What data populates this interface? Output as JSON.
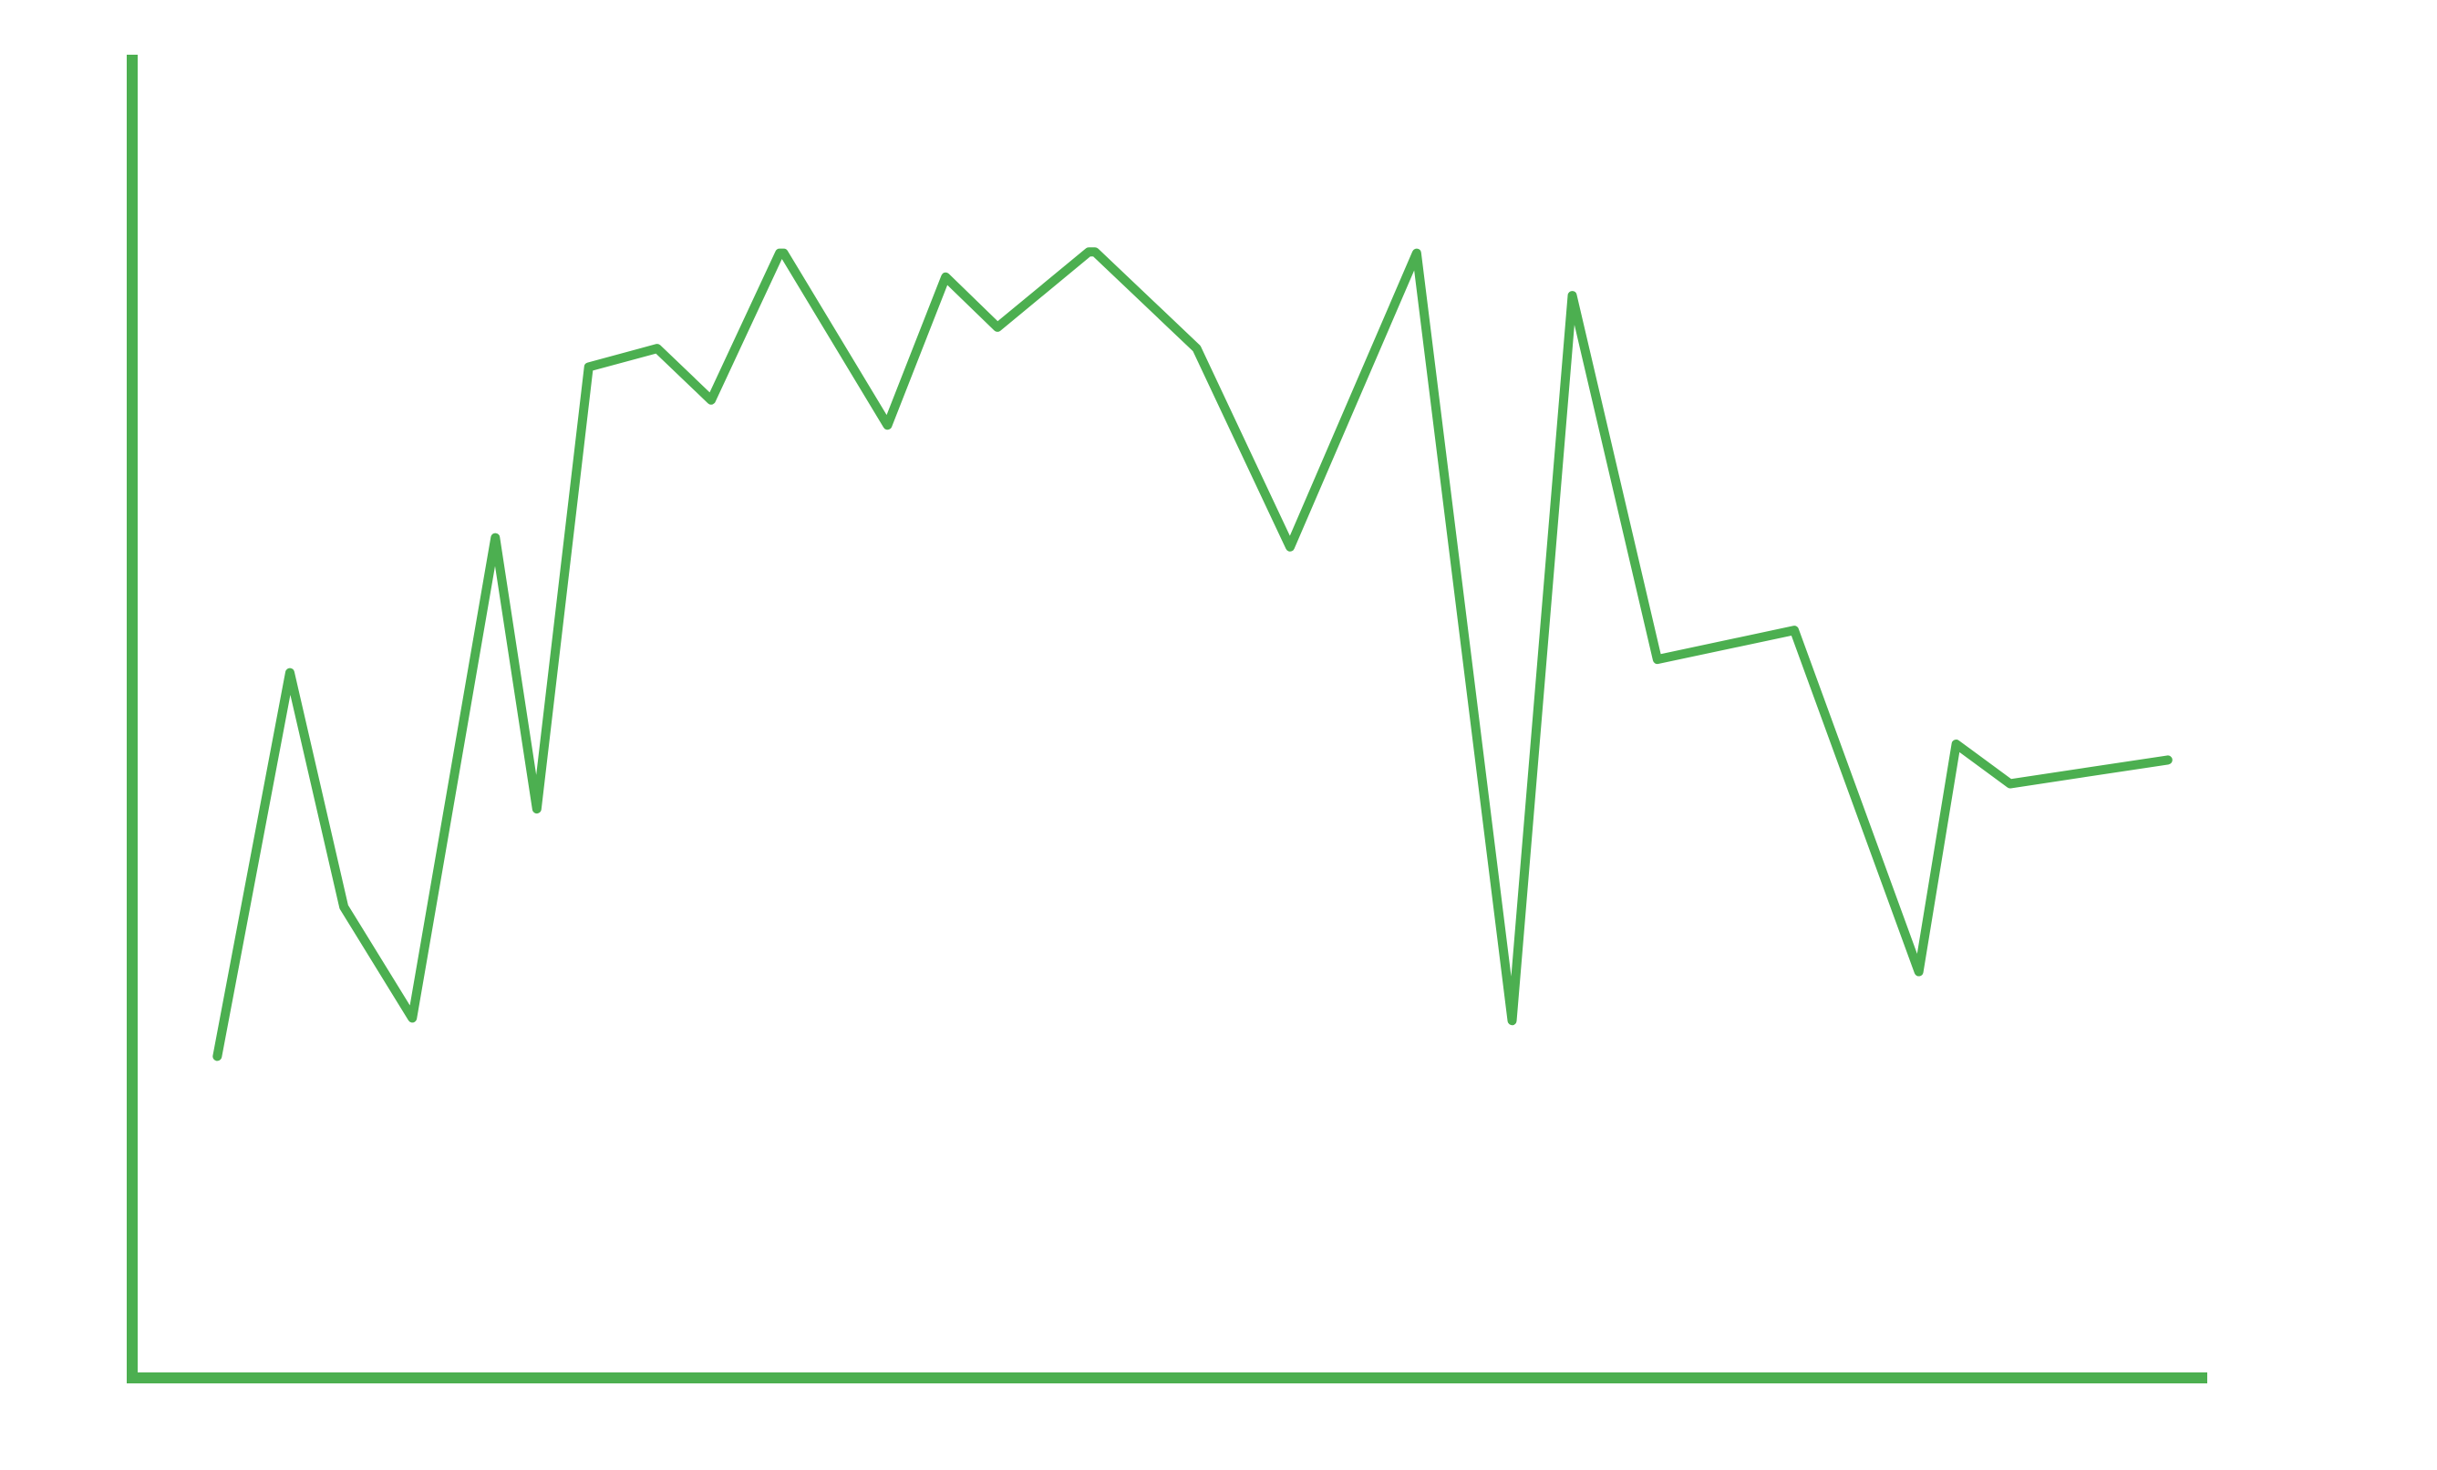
{
  "chart_data": {
    "type": "line",
    "color": "#4caf50",
    "x": [
      4.1,
      7.6,
      10.2,
      13.5,
      17.5,
      19.5,
      22.0,
      25.3,
      27.9,
      31.2,
      31.4,
      36.4,
      39.2,
      41.7,
      46.1,
      46.4,
      51.3,
      55.8,
      61.9,
      66.5,
      69.4,
      73.5,
      80.1,
      86.1,
      87.9,
      90.5,
      98.1
    ],
    "values": [
      24.3,
      53.3,
      35.6,
      27.2,
      63.5,
      43.0,
      76.4,
      77.8,
      73.9,
      85.0,
      85.0,
      72.0,
      83.2,
      79.4,
      85.1,
      85.1,
      77.8,
      62.8,
      85.0,
      27.0,
      81.8,
      54.3,
      56.5,
      30.7,
      47.9,
      44.9,
      46.7
    ],
    "xlim": [
      0,
      100
    ],
    "ylim": [
      0,
      100
    ],
    "grid": false
  }
}
